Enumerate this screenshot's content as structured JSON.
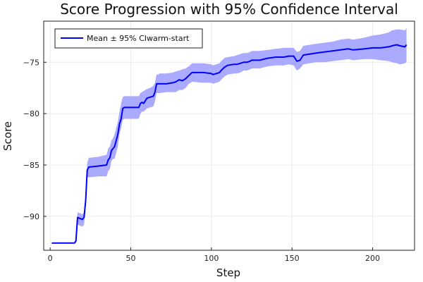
{
  "chart_data": {
    "type": "line",
    "title": "Score Progression with 95% Confidence Interval",
    "xlabel": "Step",
    "ylabel": "Score",
    "xlim": [
      -4,
      226
    ],
    "ylim": [
      -93.3,
      -71.0
    ],
    "xticks": [
      0,
      50,
      100,
      150,
      200
    ],
    "yticks": [
      -90,
      -85,
      -80,
      -75
    ],
    "grid": true,
    "legend_position": "top-left",
    "colors": {
      "line": "#0000ff",
      "band": "#aaaaff",
      "grid": "#ececec",
      "axis": "#222222"
    },
    "series": [
      {
        "name": "Mean ± 95% CIwarm-start",
        "x": [
          1,
          14,
          15,
          16,
          17,
          20,
          21,
          22,
          23,
          24,
          30,
          35,
          36,
          37,
          38,
          39,
          40,
          41,
          42,
          43,
          44,
          45,
          46,
          50,
          55,
          56,
          57,
          58,
          60,
          62,
          64,
          65,
          66,
          67,
          68,
          72,
          76,
          78,
          80,
          82,
          84,
          86,
          88,
          95,
          100,
          101,
          105,
          106,
          108,
          110,
          114,
          116,
          118,
          120,
          122,
          124,
          125,
          130,
          135,
          140,
          145,
          148,
          151,
          153,
          155,
          157,
          165,
          170,
          175,
          180,
          185,
          188,
          195,
          200,
          205,
          210,
          212,
          215,
          217,
          220,
          221
        ],
        "mean": [
          -92.6,
          -92.6,
          -92.6,
          -92.4,
          -90.1,
          -90.3,
          -90.1,
          -88.5,
          -85.5,
          -85.2,
          -85.1,
          -85.0,
          -84.5,
          -84.3,
          -83.6,
          -83.4,
          -83.2,
          -82.6,
          -82.0,
          -81.0,
          -80.5,
          -79.5,
          -79.4,
          -79.4,
          -79.4,
          -79.0,
          -78.9,
          -79.0,
          -78.5,
          -78.4,
          -78.3,
          -77.9,
          -77.1,
          -77.1,
          -77.1,
          -77.1,
          -77.0,
          -76.9,
          -76.7,
          -76.8,
          -76.6,
          -76.3,
          -76.0,
          -76.0,
          -76.1,
          -76.2,
          -76.0,
          -75.8,
          -75.5,
          -75.3,
          -75.2,
          -75.2,
          -75.1,
          -75.0,
          -75.0,
          -74.9,
          -74.8,
          -74.8,
          -74.6,
          -74.5,
          -74.5,
          -74.4,
          -74.4,
          -74.9,
          -74.8,
          -74.3,
          -74.1,
          -74.0,
          -73.9,
          -73.8,
          -73.7,
          -73.8,
          -73.7,
          -73.6,
          -73.6,
          -73.5,
          -73.4,
          -73.3,
          -73.4,
          -73.5,
          -73.3
        ],
        "lower": [
          -92.6,
          -92.6,
          -92.6,
          -92.6,
          -90.8,
          -91.0,
          -90.8,
          -89.2,
          -86.2,
          -86.2,
          -86.1,
          -86.1,
          -85.6,
          -85.4,
          -84.6,
          -84.4,
          -84.4,
          -83.8,
          -83.2,
          -82.0,
          -81.4,
          -80.6,
          -80.5,
          -80.5,
          -80.5,
          -80.0,
          -79.8,
          -79.8,
          -79.5,
          -79.4,
          -79.3,
          -78.8,
          -78.0,
          -78.0,
          -78.0,
          -77.9,
          -77.9,
          -77.9,
          -77.7,
          -77.7,
          -77.5,
          -77.1,
          -76.9,
          -77.0,
          -77.0,
          -77.1,
          -76.9,
          -76.7,
          -76.4,
          -76.2,
          -76.1,
          -76.1,
          -76.0,
          -75.8,
          -75.8,
          -75.7,
          -75.6,
          -75.6,
          -75.4,
          -75.3,
          -75.3,
          -75.2,
          -75.3,
          -75.8,
          -75.6,
          -75.2,
          -75.0,
          -75.0,
          -74.9,
          -74.8,
          -74.7,
          -74.8,
          -74.7,
          -74.7,
          -74.8,
          -74.9,
          -75.0,
          -75.1,
          -75.2,
          -75.1,
          -75.0
        ],
        "upper": [
          -92.6,
          -92.6,
          -92.6,
          -92.2,
          -89.6,
          -89.8,
          -89.6,
          -87.8,
          -84.8,
          -84.3,
          -84.2,
          -84.0,
          -83.4,
          -83.2,
          -82.6,
          -82.4,
          -82.0,
          -81.4,
          -80.8,
          -79.8,
          -79.0,
          -78.4,
          -78.3,
          -78.3,
          -78.3,
          -78.0,
          -77.9,
          -77.8,
          -77.6,
          -77.5,
          -77.3,
          -77.0,
          -76.2,
          -76.2,
          -76.1,
          -76.1,
          -76.0,
          -75.9,
          -75.8,
          -75.7,
          -75.6,
          -75.4,
          -75.1,
          -75.1,
          -75.2,
          -75.3,
          -75.1,
          -74.9,
          -74.6,
          -74.5,
          -74.4,
          -74.3,
          -74.2,
          -74.1,
          -74.1,
          -74.0,
          -73.9,
          -73.9,
          -73.8,
          -73.7,
          -73.6,
          -73.6,
          -73.6,
          -74.0,
          -73.9,
          -73.4,
          -73.2,
          -73.1,
          -73.0,
          -72.8,
          -72.7,
          -72.8,
          -72.6,
          -72.4,
          -72.3,
          -72.1,
          -71.9,
          -71.8,
          -71.8,
          -71.9,
          -71.7
        ]
      }
    ]
  }
}
